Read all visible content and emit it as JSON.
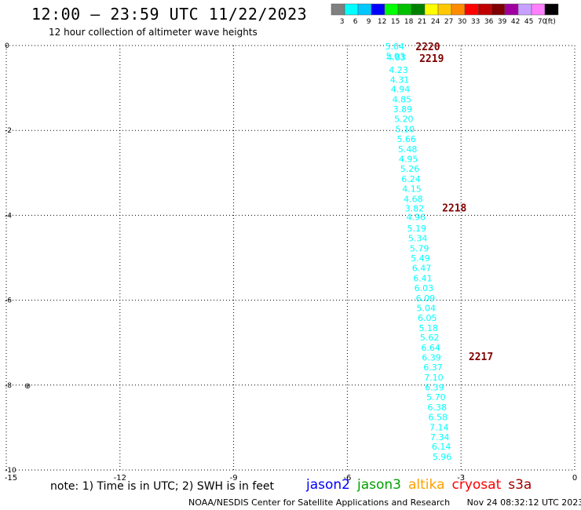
{
  "header": {
    "title": "12:00 – 23:59 UTC 11/22/2023",
    "subtitle": "12 hour collection of altimeter wave heights"
  },
  "color_scale": {
    "unit_label": "(ft)",
    "bins": [
      {
        "label": "3",
        "color": "#808080"
      },
      {
        "label": "6",
        "color": "#00ffff"
      },
      {
        "label": "9",
        "color": "#00c8ff"
      },
      {
        "label": "12",
        "color": "#0000ff"
      },
      {
        "label": "15",
        "color": "#00ff00"
      },
      {
        "label": "18",
        "color": "#00c000"
      },
      {
        "label": "21",
        "color": "#008000"
      },
      {
        "label": "24",
        "color": "#ffff00"
      },
      {
        "label": "27",
        "color": "#ffc800"
      },
      {
        "label": "30",
        "color": "#ff8c00"
      },
      {
        "label": "33",
        "color": "#ff0000"
      },
      {
        "label": "36",
        "color": "#c00000"
      },
      {
        "label": "39",
        "color": "#800000"
      },
      {
        "label": "42",
        "color": "#a000a0"
      },
      {
        "label": "45",
        "color": "#c8a0ff"
      },
      {
        "label": "70",
        "color": "#ff80ff"
      },
      {
        "label": "",
        "color": "#000000"
      }
    ]
  },
  "chart_data": {
    "type": "scatter",
    "title": "",
    "xlabel": "",
    "ylabel": "",
    "xlim": [
      -15,
      0
    ],
    "ylim": [
      -10,
      0
    ],
    "grid": true,
    "x_ticks": [
      "-15",
      "-12",
      "-9",
      "-6",
      "-3",
      "0"
    ],
    "y_ticks": [
      "0",
      "-2",
      "-4",
      "-6",
      "-8",
      "-10"
    ],
    "series": [
      {
        "points": [
          {
            "x": -4.75,
            "y": -0.02,
            "value": "5.04"
          },
          {
            "x": -4.73,
            "y": -0.25,
            "value": "5.03"
          },
          {
            "x": -4.71,
            "y": -0.28,
            "value": "4.83"
          },
          {
            "x": -4.65,
            "y": -0.57,
            "value": "4.23"
          },
          {
            "x": -4.62,
            "y": -0.8,
            "value": "4.31"
          },
          {
            "x": -4.6,
            "y": -1.03,
            "value": "4.94"
          },
          {
            "x": -4.56,
            "y": -1.27,
            "value": "4.85"
          },
          {
            "x": -4.54,
            "y": -1.5,
            "value": "3.89"
          },
          {
            "x": -4.51,
            "y": -1.73,
            "value": "5.20"
          },
          {
            "x": -4.48,
            "y": -1.97,
            "value": "5.10"
          },
          {
            "x": -4.44,
            "y": -2.2,
            "value": "5.66"
          },
          {
            "x": -4.41,
            "y": -2.44,
            "value": "5.48"
          },
          {
            "x": -4.39,
            "y": -2.67,
            "value": "4.95"
          },
          {
            "x": -4.35,
            "y": -2.9,
            "value": "5.26"
          },
          {
            "x": -4.32,
            "y": -3.14,
            "value": "6.24"
          },
          {
            "x": -4.3,
            "y": -3.37,
            "value": "4.15"
          },
          {
            "x": -4.26,
            "y": -3.61,
            "value": "4.68"
          },
          {
            "x": -4.23,
            "y": -3.84,
            "value": "3.82"
          },
          {
            "x": -4.19,
            "y": -4.04,
            "value": "4.96"
          },
          {
            "x": -4.17,
            "y": -4.31,
            "value": "5.19"
          },
          {
            "x": -4.14,
            "y": -4.54,
            "value": "5.34"
          },
          {
            "x": -4.1,
            "y": -4.78,
            "value": "5.79"
          },
          {
            "x": -4.07,
            "y": -5.01,
            "value": "5.49"
          },
          {
            "x": -4.04,
            "y": -5.24,
            "value": "6.47"
          },
          {
            "x": -4.01,
            "y": -5.48,
            "value": "6.41"
          },
          {
            "x": -3.98,
            "y": -5.71,
            "value": "6.03"
          },
          {
            "x": -3.94,
            "y": -5.95,
            "value": "6.09"
          },
          {
            "x": -3.92,
            "y": -6.18,
            "value": "5.04"
          },
          {
            "x": -3.89,
            "y": -6.41,
            "value": "6.05"
          },
          {
            "x": -3.86,
            "y": -6.65,
            "value": "5.18"
          },
          {
            "x": -3.83,
            "y": -6.88,
            "value": "5.62"
          },
          {
            "x": -3.8,
            "y": -7.12,
            "value": "6.64"
          },
          {
            "x": -3.78,
            "y": -7.35,
            "value": "6.39"
          },
          {
            "x": -3.74,
            "y": -7.58,
            "value": "6.37"
          },
          {
            "x": -3.72,
            "y": -7.82,
            "value": "7.10"
          },
          {
            "x": -3.7,
            "y": -8.05,
            "value": "6.39"
          },
          {
            "x": -3.66,
            "y": -8.28,
            "value": "5.70"
          },
          {
            "x": -3.63,
            "y": -8.52,
            "value": "6.38"
          },
          {
            "x": -3.61,
            "y": -8.75,
            "value": "6.58"
          },
          {
            "x": -3.58,
            "y": -8.99,
            "value": "7.14"
          },
          {
            "x": -3.56,
            "y": -9.22,
            "value": "7.34"
          },
          {
            "x": -3.52,
            "y": -9.45,
            "value": "6.14"
          },
          {
            "x": -3.5,
            "y": -9.69,
            "value": "5.96"
          }
        ]
      }
    ],
    "time_labels": [
      {
        "x": -4.2,
        "y": -0.02,
        "text": "2220"
      },
      {
        "x": -4.1,
        "y": -0.3,
        "text": "2219"
      },
      {
        "x": -3.5,
        "y": -3.82,
        "text": "2218"
      },
      {
        "x": -2.8,
        "y": -7.32,
        "text": "2217"
      }
    ],
    "markers": [
      {
        "x": -14.44,
        "y": -8.0,
        "text": "⊕"
      }
    ]
  },
  "note": "note: 1) Time is in UTC; 2) SWH is in feet",
  "satellites": [
    {
      "label": "jason2",
      "color": "#0000ff"
    },
    {
      "label": "jason3",
      "color": "#00a000"
    },
    {
      "label": "altika",
      "color": "#ffa000"
    },
    {
      "label": "cryosat",
      "color": "#ff0000"
    },
    {
      "label": "s3a",
      "color": "#a00000"
    }
  ],
  "footer": {
    "org": "NOAA/NESDIS Center for Satellite Applications and Research",
    "timestamp": "Nov 24 08:32:12 UTC 2023"
  }
}
